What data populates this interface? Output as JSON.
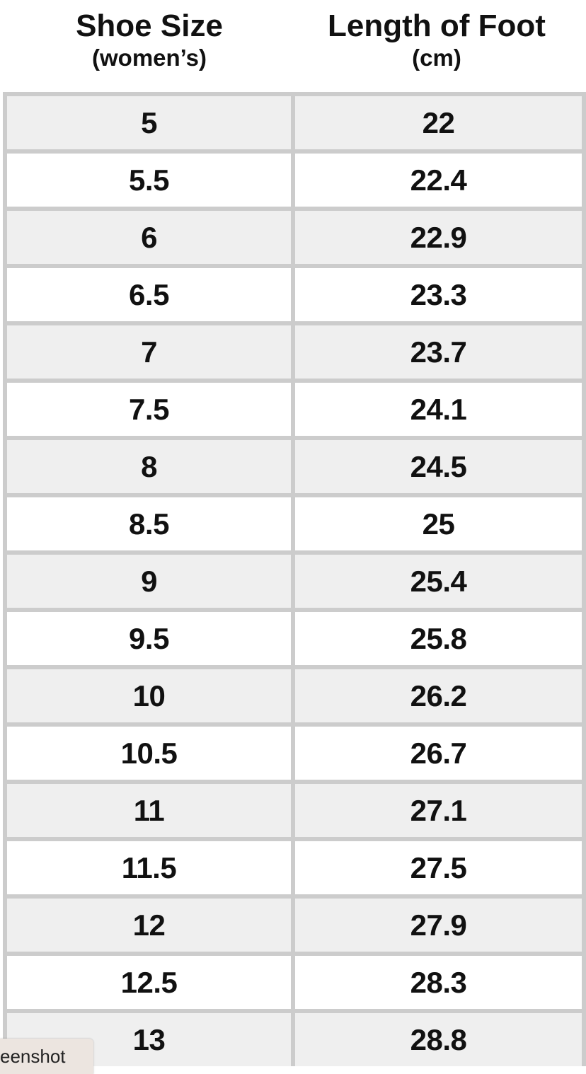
{
  "headers": {
    "col1": {
      "title": "Shoe Size",
      "sub": "(women’s)"
    },
    "col2": {
      "title": "Length of Foot",
      "sub": "(cm)"
    }
  },
  "rows": [
    [
      "5",
      "22"
    ],
    [
      "5.5",
      "22.4"
    ],
    [
      "6",
      "22.9"
    ],
    [
      "6.5",
      "23.3"
    ],
    [
      "7",
      "23.7"
    ],
    [
      "7.5",
      "24.1"
    ],
    [
      "8",
      "24.5"
    ],
    [
      "8.5",
      "25"
    ],
    [
      "9",
      "25.4"
    ],
    [
      "9.5",
      "25.8"
    ],
    [
      "10",
      "26.2"
    ],
    [
      "10.5",
      "26.7"
    ],
    [
      "11",
      "27.1"
    ],
    [
      "11.5",
      "27.5"
    ],
    [
      "12",
      "27.9"
    ],
    [
      "12.5",
      "28.3"
    ],
    [
      "13",
      "28.8"
    ]
  ],
  "tooltip": "eenshot",
  "colors": {
    "border": "#cccccc",
    "row_shaded": "#efefef",
    "row_plain": "#ffffff"
  }
}
